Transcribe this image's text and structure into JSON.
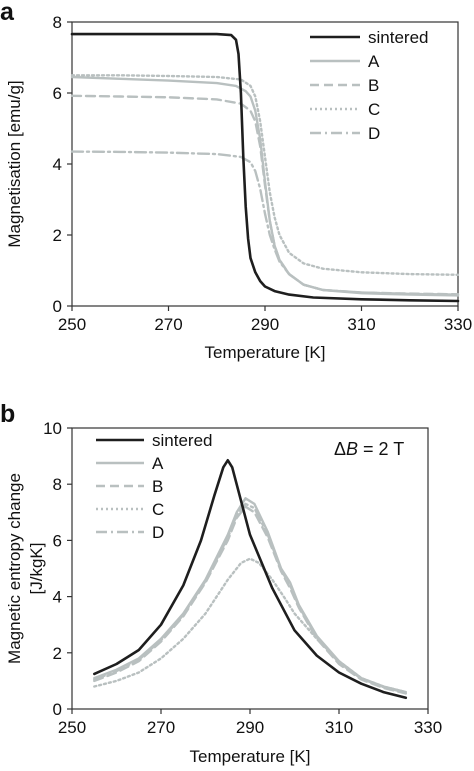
{
  "chart_data": [
    {
      "panel": "a",
      "type": "line",
      "xlabel": "Temperature [K]",
      "ylabel": "Magnetisation [emu/g]",
      "xlim": [
        250,
        330
      ],
      "ylim": [
        0,
        8
      ],
      "xticks": [
        250,
        270,
        290,
        310,
        330
      ],
      "yticks": [
        0,
        2,
        4,
        6,
        8
      ],
      "grid": false,
      "legend_position": "top-right",
      "series": [
        {
          "name": "sintered",
          "color": "#1e1e1e",
          "dash": "solid",
          "x": [
            250,
            260,
            270,
            280,
            283,
            284,
            284.5,
            285,
            285.5,
            286,
            286.5,
            287,
            288,
            289,
            290,
            292,
            295,
            300,
            310,
            320,
            330
          ],
          "y": [
            7.66,
            7.66,
            7.66,
            7.66,
            7.63,
            7.5,
            7.1,
            6.0,
            4.2,
            2.8,
            1.9,
            1.35,
            0.95,
            0.7,
            0.55,
            0.42,
            0.32,
            0.24,
            0.19,
            0.16,
            0.14
          ]
        },
        {
          "name": "A",
          "color": "#b9c0c0",
          "dash": "solid",
          "x": [
            250,
            260,
            270,
            280,
            284,
            286,
            287,
            288,
            289,
            290,
            291,
            292,
            293,
            295,
            298,
            302,
            310,
            320,
            330
          ],
          "y": [
            6.45,
            6.4,
            6.35,
            6.28,
            6.2,
            6.05,
            5.9,
            5.5,
            4.7,
            3.5,
            2.4,
            1.7,
            1.3,
            0.9,
            0.6,
            0.45,
            0.36,
            0.32,
            0.3
          ]
        },
        {
          "name": "B",
          "color": "#b9c0c0",
          "dash": "dashed",
          "x": [
            250,
            260,
            270,
            280,
            285,
            287,
            288,
            289,
            290,
            291,
            292,
            293,
            295,
            298,
            302,
            310,
            320,
            330
          ],
          "y": [
            5.92,
            5.9,
            5.88,
            5.82,
            5.7,
            5.5,
            5.2,
            4.5,
            3.4,
            2.4,
            1.7,
            1.3,
            0.9,
            0.6,
            0.45,
            0.38,
            0.35,
            0.33
          ]
        },
        {
          "name": "C",
          "color": "#b9c0c0",
          "dash": "dotted",
          "x": [
            250,
            260,
            270,
            280,
            285,
            287,
            288,
            289,
            290,
            291,
            292,
            293,
            295,
            298,
            302,
            310,
            320,
            330
          ],
          "y": [
            6.5,
            6.5,
            6.48,
            6.45,
            6.38,
            6.2,
            5.9,
            5.2,
            4.2,
            3.2,
            2.5,
            2.0,
            1.5,
            1.2,
            1.05,
            0.95,
            0.9,
            0.88
          ]
        },
        {
          "name": "D",
          "color": "#b9c0c0",
          "dash": "dashdot",
          "x": [
            250,
            260,
            270,
            280,
            285,
            287,
            288,
            289,
            290,
            291,
            292,
            293,
            295,
            298,
            302,
            310,
            320,
            330
          ],
          "y": [
            4.35,
            4.34,
            4.32,
            4.28,
            4.2,
            4.05,
            3.8,
            3.3,
            2.6,
            2.0,
            1.6,
            1.25,
            0.9,
            0.6,
            0.45,
            0.38,
            0.34,
            0.32
          ]
        }
      ]
    },
    {
      "panel": "b",
      "type": "line",
      "xlabel": "Temperature [K]",
      "ylabel": "Magnetic entropy change",
      "ylabel2": "[J/kgK]",
      "annotation": "ΔB = 2 T",
      "xlim": [
        250,
        330
      ],
      "ylim": [
        0,
        10
      ],
      "xticks": [
        250,
        270,
        290,
        310,
        330
      ],
      "yticks": [
        0,
        2,
        4,
        6,
        8,
        10
      ],
      "grid": false,
      "legend_position": "top-left",
      "series": [
        {
          "name": "sintered",
          "color": "#1e1e1e",
          "dash": "solid",
          "x": [
            255,
            260,
            265,
            270,
            275,
            279,
            282,
            284,
            285,
            286,
            288,
            290,
            295,
            300,
            305,
            310,
            315,
            320,
            325
          ],
          "y": [
            1.25,
            1.6,
            2.1,
            3.0,
            4.4,
            6.0,
            7.6,
            8.6,
            8.85,
            8.6,
            7.4,
            6.2,
            4.3,
            2.8,
            1.9,
            1.3,
            0.9,
            0.6,
            0.4
          ]
        },
        {
          "name": "A",
          "color": "#b9c0c0",
          "dash": "solid",
          "x": [
            255,
            260,
            265,
            270,
            275,
            280,
            285,
            287,
            289,
            291,
            294,
            297,
            299,
            301,
            305,
            310,
            315,
            320,
            325
          ],
          "y": [
            1.1,
            1.4,
            1.8,
            2.5,
            3.4,
            4.6,
            6.2,
            7.0,
            7.5,
            7.3,
            6.3,
            5.0,
            4.5,
            3.7,
            2.6,
            1.7,
            1.1,
            0.8,
            0.6
          ]
        },
        {
          "name": "B",
          "color": "#b9c0c0",
          "dash": "dashed",
          "x": [
            255,
            260,
            265,
            270,
            275,
            280,
            285,
            287,
            289,
            291,
            294,
            297,
            299,
            301,
            305,
            310,
            315,
            320,
            325
          ],
          "y": [
            1.0,
            1.3,
            1.7,
            2.4,
            3.3,
            4.5,
            6.0,
            6.8,
            7.2,
            7.0,
            6.1,
            4.9,
            4.3,
            3.6,
            2.5,
            1.6,
            1.05,
            0.75,
            0.55
          ]
        },
        {
          "name": "C",
          "color": "#b9c0c0",
          "dash": "dotted",
          "x": [
            255,
            260,
            265,
            270,
            275,
            280,
            285,
            288,
            290,
            292,
            295,
            298,
            300,
            305,
            310,
            315,
            320,
            325
          ],
          "y": [
            0.8,
            1.0,
            1.3,
            1.8,
            2.5,
            3.4,
            4.6,
            5.2,
            5.35,
            5.2,
            4.6,
            3.9,
            3.4,
            2.5,
            1.7,
            1.1,
            0.8,
            0.6
          ]
        },
        {
          "name": "D",
          "color": "#b9c0c0",
          "dash": "dashdot",
          "x": [
            255,
            260,
            265,
            270,
            275,
            280,
            285,
            287,
            289,
            291,
            294,
            297,
            299,
            301,
            305,
            310,
            315,
            320,
            325
          ],
          "y": [
            1.05,
            1.35,
            1.75,
            2.45,
            3.35,
            4.55,
            6.1,
            6.9,
            7.3,
            7.15,
            6.2,
            4.95,
            4.4,
            3.65,
            2.55,
            1.65,
            1.08,
            0.78,
            0.58
          ]
        }
      ]
    }
  ]
}
